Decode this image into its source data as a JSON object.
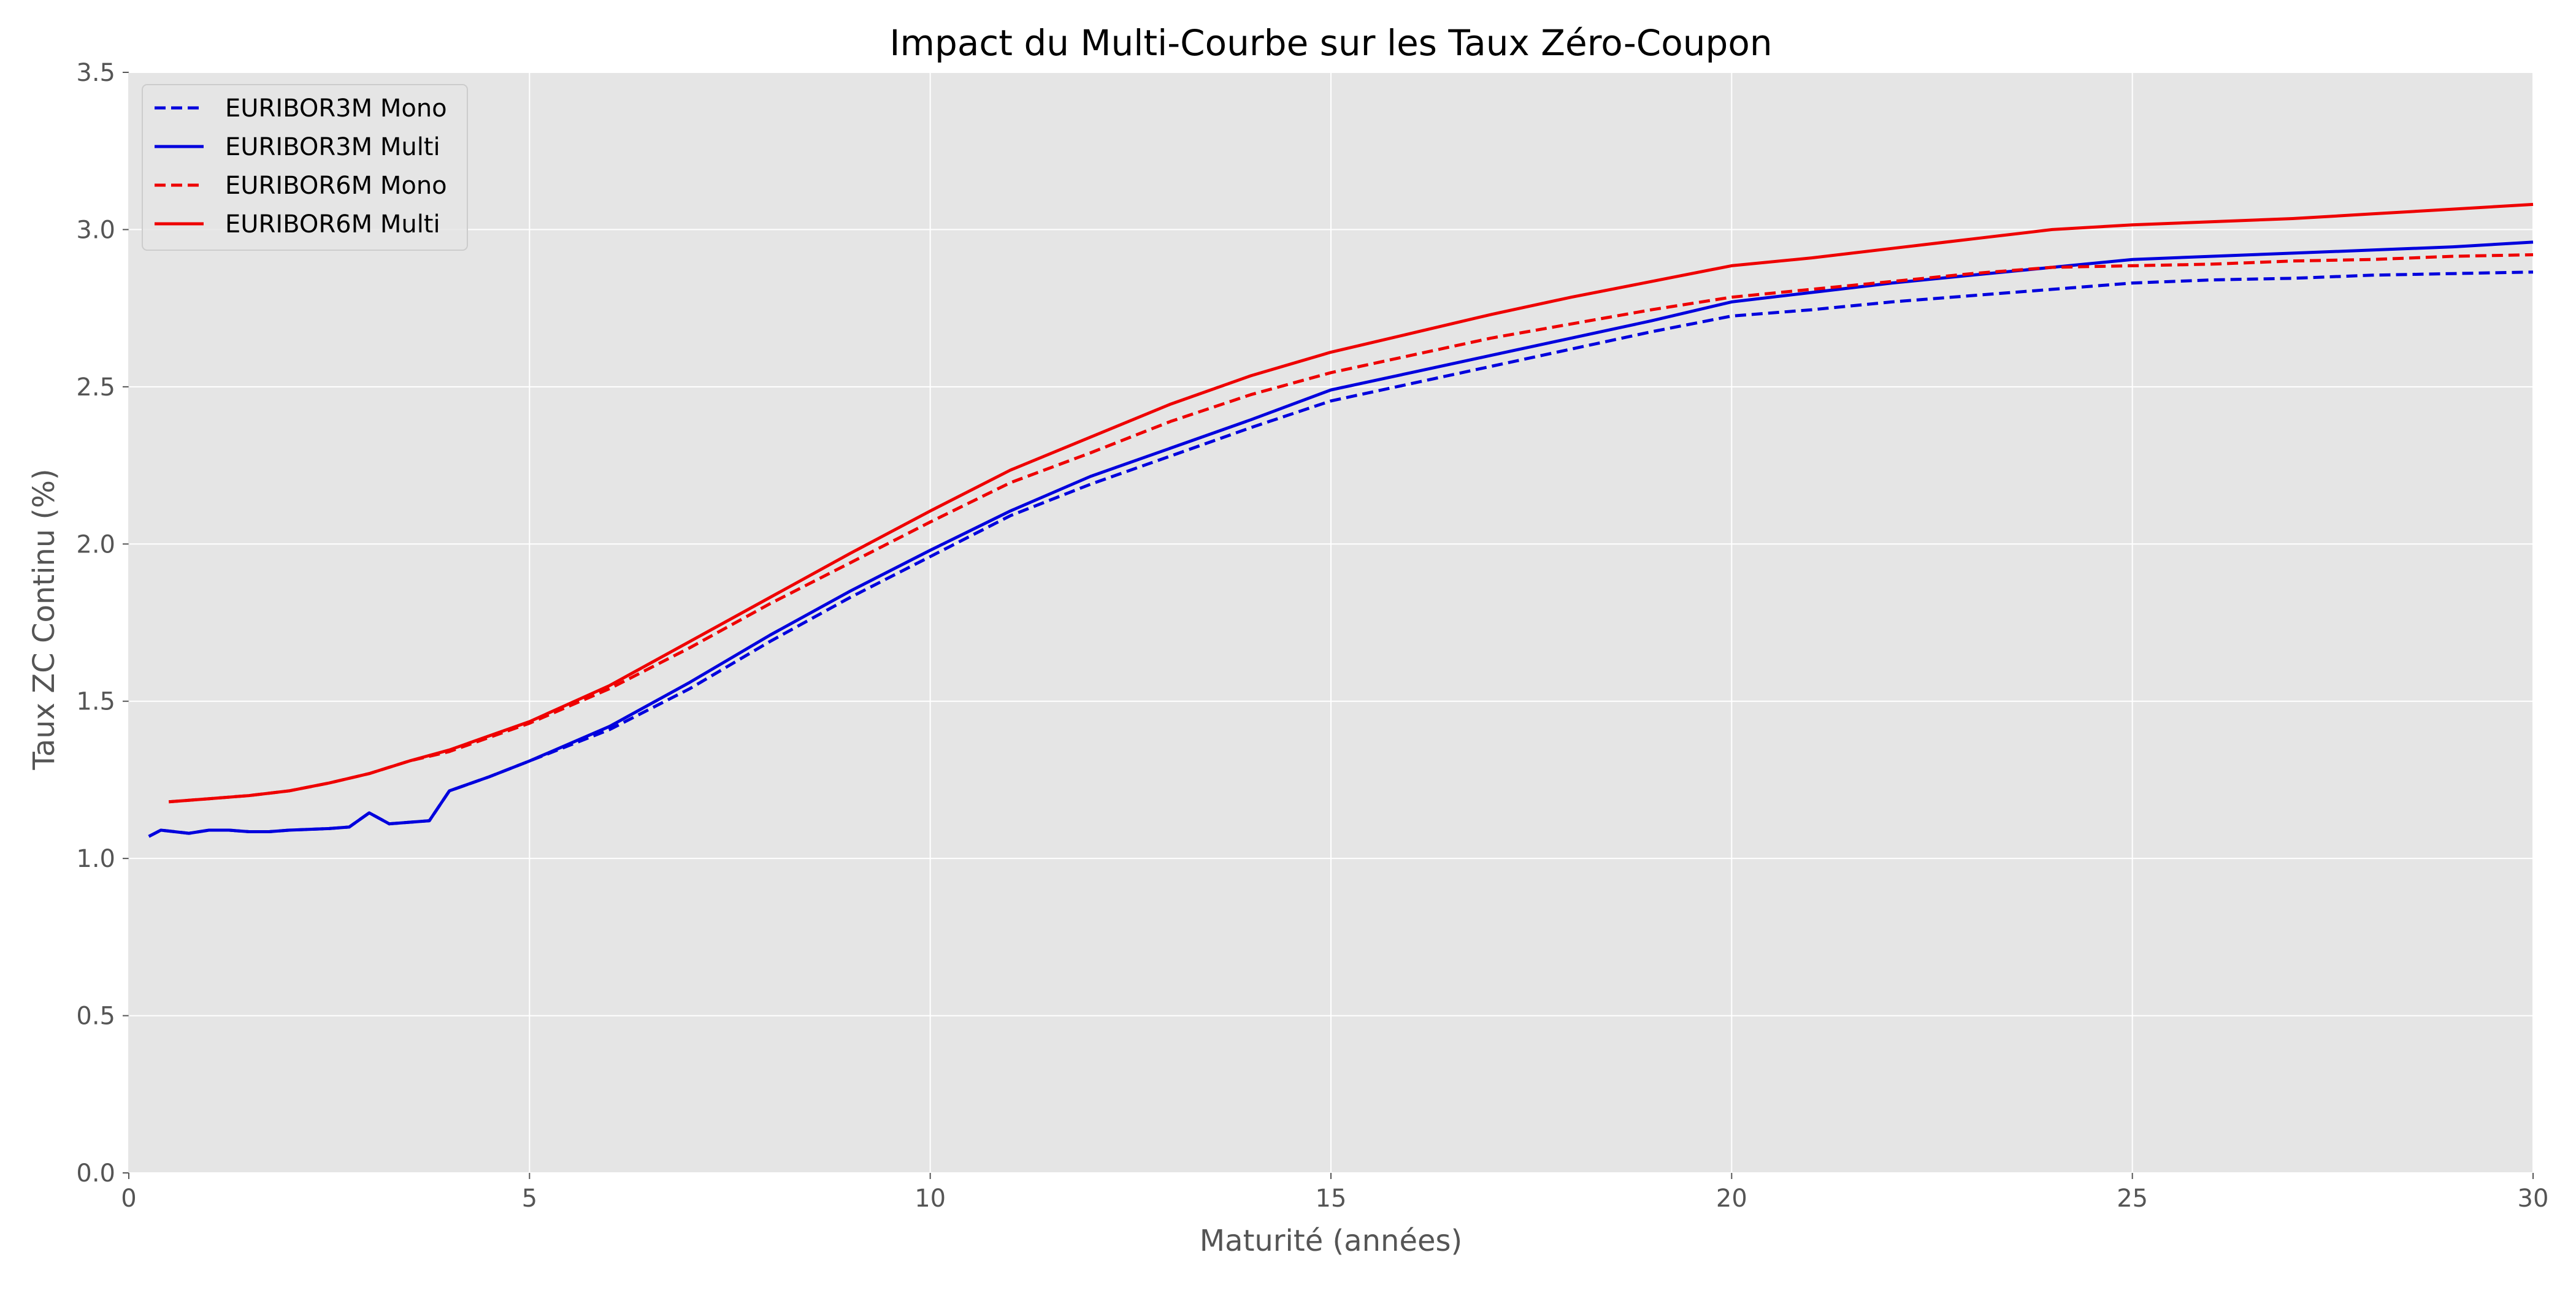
{
  "chart_data": {
    "type": "line",
    "title": "Impact du Multi-Courbe sur les Taux Zéro-Coupon",
    "xlabel": "Maturité (années)",
    "ylabel": "Taux ZC Continu (%)",
    "xlim": [
      0,
      30
    ],
    "ylim": [
      0,
      3.5
    ],
    "xticks": [
      0,
      5,
      10,
      15,
      20,
      25,
      30
    ],
    "yticks": [
      0.0,
      0.5,
      1.0,
      1.5,
      2.0,
      2.5,
      3.0,
      3.5
    ],
    "xtick_labels": [
      "0",
      "5",
      "10",
      "15",
      "20",
      "25",
      "30"
    ],
    "ytick_labels": [
      "0.0",
      "0.5",
      "1.0",
      "1.5",
      "2.0",
      "2.5",
      "3.0",
      "3.5"
    ],
    "grid": true,
    "background": "#e5e5e5",
    "legend_position": "top-left",
    "series": [
      {
        "name": "EURIBOR3M Mono",
        "color": "#0000dd",
        "style": "dashed",
        "points": [
          [
            0.25,
            1.07
          ],
          [
            0.4,
            1.09
          ],
          [
            0.75,
            1.08
          ],
          [
            1,
            1.09
          ],
          [
            1.25,
            1.09
          ],
          [
            1.5,
            1.085
          ],
          [
            1.75,
            1.085
          ],
          [
            2,
            1.09
          ],
          [
            2.5,
            1.095
          ],
          [
            2.75,
            1.1
          ],
          [
            3,
            1.145
          ],
          [
            3.25,
            1.11
          ],
          [
            3.75,
            1.12
          ],
          [
            4,
            1.215
          ],
          [
            4.5,
            1.26
          ],
          [
            5,
            1.31
          ],
          [
            6,
            1.41
          ],
          [
            7,
            1.54
          ],
          [
            8,
            1.69
          ],
          [
            9,
            1.83
          ],
          [
            10,
            1.96
          ],
          [
            11,
            2.09
          ],
          [
            12,
            2.19
          ],
          [
            13,
            2.28
          ],
          [
            14,
            2.37
          ],
          [
            15,
            2.455
          ],
          [
            16,
            2.51
          ],
          [
            17,
            2.565
          ],
          [
            18,
            2.62
          ],
          [
            19,
            2.675
          ],
          [
            20,
            2.725
          ],
          [
            21,
            2.745
          ],
          [
            22,
            2.77
          ],
          [
            23,
            2.79
          ],
          [
            24,
            2.81
          ],
          [
            25,
            2.83
          ],
          [
            26,
            2.84
          ],
          [
            27,
            2.845
          ],
          [
            28,
            2.855
          ],
          [
            29,
            2.86
          ],
          [
            30,
            2.865
          ]
        ]
      },
      {
        "name": "EURIBOR3M Multi",
        "color": "#0000dd",
        "style": "solid",
        "points": [
          [
            0.25,
            1.07
          ],
          [
            0.4,
            1.09
          ],
          [
            0.75,
            1.08
          ],
          [
            1,
            1.09
          ],
          [
            1.25,
            1.09
          ],
          [
            1.5,
            1.085
          ],
          [
            1.75,
            1.085
          ],
          [
            2,
            1.09
          ],
          [
            2.5,
            1.095
          ],
          [
            2.75,
            1.1
          ],
          [
            3,
            1.145
          ],
          [
            3.25,
            1.11
          ],
          [
            3.75,
            1.12
          ],
          [
            4,
            1.215
          ],
          [
            4.5,
            1.26
          ],
          [
            5,
            1.31
          ],
          [
            6,
            1.42
          ],
          [
            7,
            1.56
          ],
          [
            8,
            1.71
          ],
          [
            9,
            1.85
          ],
          [
            10,
            1.98
          ],
          [
            11,
            2.105
          ],
          [
            12,
            2.215
          ],
          [
            13,
            2.305
          ],
          [
            14,
            2.395
          ],
          [
            15,
            2.49
          ],
          [
            16,
            2.545
          ],
          [
            17,
            2.6
          ],
          [
            18,
            2.655
          ],
          [
            19,
            2.71
          ],
          [
            20,
            2.77
          ],
          [
            21,
            2.8
          ],
          [
            22,
            2.83
          ],
          [
            23,
            2.855
          ],
          [
            24,
            2.88
          ],
          [
            25,
            2.905
          ],
          [
            26,
            2.915
          ],
          [
            27,
            2.925
          ],
          [
            28,
            2.935
          ],
          [
            29,
            2.945
          ],
          [
            30,
            2.96
          ]
        ]
      },
      {
        "name": "EURIBOR6M Mono",
        "color": "#ee0000",
        "style": "dashed",
        "points": [
          [
            0.5,
            1.18
          ],
          [
            1,
            1.19
          ],
          [
            1.5,
            1.2
          ],
          [
            2,
            1.215
          ],
          [
            2.5,
            1.24
          ],
          [
            3,
            1.27
          ],
          [
            3.5,
            1.31
          ],
          [
            4,
            1.34
          ],
          [
            5,
            1.43
          ],
          [
            6,
            1.54
          ],
          [
            7,
            1.67
          ],
          [
            8,
            1.81
          ],
          [
            9,
            1.94
          ],
          [
            10,
            2.07
          ],
          [
            11,
            2.195
          ],
          [
            12,
            2.29
          ],
          [
            13,
            2.39
          ],
          [
            14,
            2.475
          ],
          [
            15,
            2.545
          ],
          [
            16,
            2.6
          ],
          [
            17,
            2.655
          ],
          [
            18,
            2.7
          ],
          [
            19,
            2.745
          ],
          [
            20,
            2.785
          ],
          [
            21,
            2.81
          ],
          [
            22,
            2.835
          ],
          [
            23,
            2.86
          ],
          [
            24,
            2.88
          ],
          [
            25,
            2.885
          ],
          [
            26,
            2.89
          ],
          [
            27,
            2.9
          ],
          [
            28,
            2.905
          ],
          [
            29,
            2.915
          ],
          [
            30,
            2.92
          ]
        ]
      },
      {
        "name": "EURIBOR6M Multi",
        "color": "#ee0000",
        "style": "solid",
        "points": [
          [
            0.5,
            1.18
          ],
          [
            1,
            1.19
          ],
          [
            1.5,
            1.2
          ],
          [
            2,
            1.215
          ],
          [
            2.5,
            1.24
          ],
          [
            3,
            1.27
          ],
          [
            3.5,
            1.31
          ],
          [
            4,
            1.345
          ],
          [
            5,
            1.435
          ],
          [
            6,
            1.55
          ],
          [
            7,
            1.69
          ],
          [
            8,
            1.83
          ],
          [
            9,
            1.97
          ],
          [
            10,
            2.105
          ],
          [
            11,
            2.235
          ],
          [
            12,
            2.34
          ],
          [
            13,
            2.445
          ],
          [
            14,
            2.535
          ],
          [
            15,
            2.61
          ],
          [
            16,
            2.67
          ],
          [
            17,
            2.73
          ],
          [
            18,
            2.785
          ],
          [
            19,
            2.835
          ],
          [
            20,
            2.885
          ],
          [
            21,
            2.91
          ],
          [
            22,
            2.94
          ],
          [
            23,
            2.97
          ],
          [
            24,
            3.0
          ],
          [
            25,
            3.015
          ],
          [
            26,
            3.025
          ],
          [
            27,
            3.035
          ],
          [
            28,
            3.05
          ],
          [
            29,
            3.065
          ],
          [
            30,
            3.08
          ]
        ]
      }
    ]
  }
}
